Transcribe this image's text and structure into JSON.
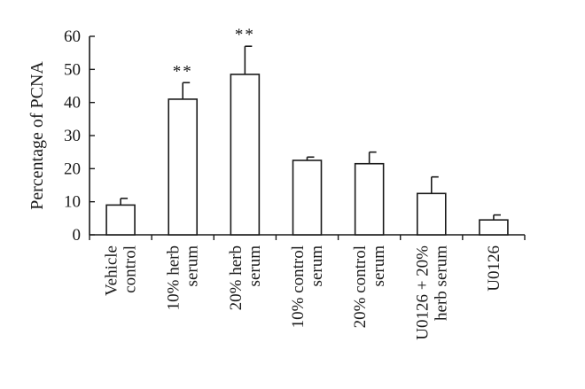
{
  "chart_data": {
    "type": "bar",
    "title": "",
    "xlabel": "",
    "ylabel": "Percentage of PCNA",
    "ylim": [
      0,
      60
    ],
    "yticks": [
      0,
      10,
      20,
      30,
      40,
      50,
      60
    ],
    "grid": false,
    "categories": [
      [
        "Vehicle",
        "control"
      ],
      [
        "10% herb",
        "serum"
      ],
      [
        "20% herb",
        "serum"
      ],
      [
        "10% control",
        "serum"
      ],
      [
        "20% control",
        "serum"
      ],
      [
        "U0126 + 20%",
        "herb serum"
      ],
      [
        "U0126"
      ]
    ],
    "values": [
      9,
      41,
      48.5,
      22.5,
      21.5,
      12.5,
      4.5
    ],
    "errors": [
      2,
      5,
      8.5,
      1,
      3.5,
      5,
      1.5
    ],
    "significance": [
      "",
      "**",
      "**",
      "",
      "",
      "",
      ""
    ],
    "colors": {
      "bar_fill": "#ffffff",
      "stroke": "#1a1a1a"
    }
  }
}
